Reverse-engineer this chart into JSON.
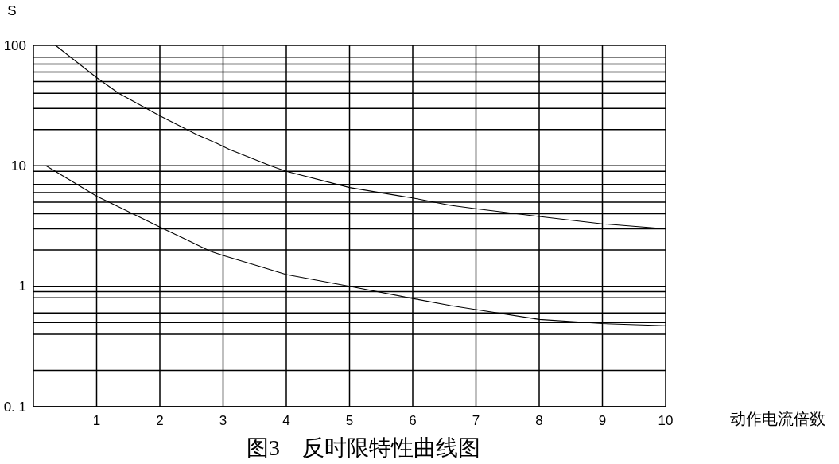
{
  "chart_data": {
    "type": "line",
    "xlabel": "动作电流倍数",
    "ylabel": "S",
    "annotations": [
      "图3　反时限特性曲线图"
    ],
    "log": true,
    "grid": true,
    "xlim": [
      0,
      10
    ],
    "xticks": [
      1,
      2,
      3,
      4,
      5,
      6,
      7,
      8,
      9,
      10
    ],
    "ylim": [
      0.1,
      100
    ],
    "yticks": [
      {
        "value": 0.1,
        "label": "0. 1"
      },
      {
        "value": 0.2,
        "label": null
      },
      {
        "value": 0.4,
        "label": null
      },
      {
        "value": 0.5,
        "label": null
      },
      {
        "value": 0.6,
        "label": null
      },
      {
        "value": 0.8,
        "label": null
      },
      {
        "value": 0.9,
        "label": null
      },
      1,
      {
        "value": 2,
        "label": null
      },
      {
        "value": 3,
        "label": null
      },
      {
        "value": 4,
        "label": null
      },
      {
        "value": 5,
        "label": null
      },
      {
        "value": 6,
        "label": null
      },
      {
        "value": 7,
        "label": null
      },
      {
        "value": 9,
        "label": null
      },
      10,
      {
        "value": 20,
        "label": null
      },
      {
        "value": 30,
        "label": null
      },
      {
        "value": 40,
        "label": null
      },
      {
        "value": 50,
        "label": null
      },
      {
        "value": 60,
        "label": null
      },
      {
        "value": 70,
        "label": null
      },
      {
        "value": 80,
        "label": null
      },
      100
    ],
    "series": [
      {
        "color": "#000000",
        "x": [
          0.35,
          1,
          1.35,
          2,
          2.6,
          2.9,
          3.1,
          3.75,
          4,
          5,
          6,
          6.6,
          7,
          8,
          9,
          10
        ],
        "values": [
          100,
          54,
          40,
          26,
          18,
          15.4,
          13.7,
          10,
          9,
          6.6,
          5.4,
          4.7,
          4.4,
          3.8,
          3.3,
          3.0
        ]
      },
      {
        "color": "#000000",
        "x": [
          0.2,
          1,
          1.3,
          2,
          2.45,
          2.8,
          3,
          3.6,
          4,
          5,
          6,
          6.6,
          7,
          8,
          9,
          10
        ],
        "values": [
          10,
          5.6,
          4.7,
          3.1,
          2.4,
          1.95,
          1.8,
          1.45,
          1.25,
          1,
          0.79,
          0.69,
          0.64,
          0.53,
          0.49,
          0.47
        ]
      }
    ]
  }
}
